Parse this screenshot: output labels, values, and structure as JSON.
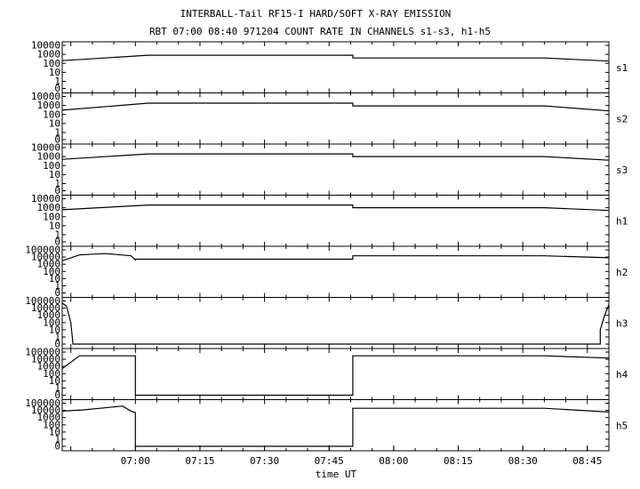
{
  "title": "INTERBALL-Tail RF15-I HARD/SOFT X-RAY EMISSION",
  "subtitle": "RBT 07:00 08:40 971204  COUNT RATE IN CHANNELS s1-s3, h1-h5",
  "chart_data": {
    "type": "line",
    "title": "INTERBALL-Tail RF15-I HARD/SOFT X-RAY EMISSION",
    "subtitle": "RBT 07:00 08:40 971204  COUNT RATE IN CHANNELS s1-s3, h1-h5",
    "xlabel": "time UT",
    "x_unit": "minutes after 06:45 UT",
    "x_range": [
      -2,
      125
    ],
    "x_ticks": [
      {
        "label": "07:00",
        "value": 15
      },
      {
        "label": "07:15",
        "value": 30
      },
      {
        "label": "07:30",
        "value": 45
      },
      {
        "label": "07:45",
        "value": 60
      },
      {
        "label": "08:00",
        "value": 75
      },
      {
        "label": "08:15",
        "value": 90
      },
      {
        "label": "08:30",
        "value": 105
      },
      {
        "label": "08:45",
        "value": 120
      }
    ],
    "y_scale": "log",
    "line_color": "#000000",
    "panels": [
      {
        "name": "s1",
        "ylabels": [
          "10000",
          "1000",
          "100",
          "10",
          "1",
          "0"
        ],
        "ymax": 10000,
        "x": [
          -2,
          18,
          65.5,
          65.5,
          110,
          125
        ],
        "y": [
          200,
          800,
          800,
          400,
          400,
          180
        ]
      },
      {
        "name": "s2",
        "ylabels": [
          "10000",
          "1000",
          "100",
          "10",
          "1",
          "0"
        ],
        "ymax": 10000,
        "x": [
          -2,
          18,
          65.5,
          65.5,
          110,
          125
        ],
        "y": [
          300,
          1800,
          1800,
          900,
          900,
          250
        ]
      },
      {
        "name": "s3",
        "ylabels": [
          "10000",
          "1000",
          "100",
          "10",
          "1",
          "0"
        ],
        "ymax": 10000,
        "x": [
          -2,
          18,
          65.5,
          65.5,
          110,
          125
        ],
        "y": [
          500,
          2000,
          2000,
          1000,
          1000,
          400
        ]
      },
      {
        "name": "h1",
        "ylabels": [
          "10000",
          "1000",
          "100",
          "10",
          "1",
          "0"
        ],
        "ymax": 10000,
        "x": [
          -2,
          18,
          65.5,
          65.5,
          110,
          125
        ],
        "y": [
          600,
          2000,
          2000,
          1000,
          1000,
          500
        ]
      },
      {
        "name": "h2",
        "ylabels": [
          "100000",
          "10000",
          "1000",
          "100",
          "10",
          "1",
          "0"
        ],
        "ymax": 100000,
        "x": [
          -2,
          2,
          8,
          14,
          15,
          15,
          65.5,
          65.5,
          110,
          125
        ],
        "y": [
          3000,
          20000,
          30000,
          15000,
          4000,
          5000,
          5000,
          15000,
          15000,
          8000
        ]
      },
      {
        "name": "h3",
        "ylabels": [
          "100000",
          "10000",
          "1000",
          "100",
          "10",
          "1",
          "0"
        ],
        "ymax": 100000,
        "x": [
          -2,
          -1,
          0,
          0.5,
          0.5,
          123,
          123,
          124,
          125
        ],
        "y": [
          50000,
          20000,
          100,
          0,
          0,
          0,
          10,
          1000,
          30000
        ]
      },
      {
        "name": "h4",
        "ylabels": [
          "100000",
          "10000",
          "1000",
          "100",
          "10",
          "1",
          "0"
        ],
        "ymax": 100000,
        "x": [
          -2,
          2,
          15,
          15,
          65.5,
          65.5,
          110,
          125
        ],
        "y": [
          500,
          30000,
          30000,
          0,
          0,
          30000,
          30000,
          15000
        ]
      },
      {
        "name": "h5",
        "ylabels": [
          "100000",
          "10000",
          "1000",
          "100",
          "10",
          "1",
          "0"
        ],
        "ymax": 100000,
        "x": [
          -2,
          3,
          12,
          14,
          15,
          15,
          65.5,
          65.5,
          110,
          125
        ],
        "y": [
          8000,
          12000,
          40000,
          8000,
          5000,
          0,
          0,
          20000,
          20000,
          6000
        ]
      }
    ]
  }
}
